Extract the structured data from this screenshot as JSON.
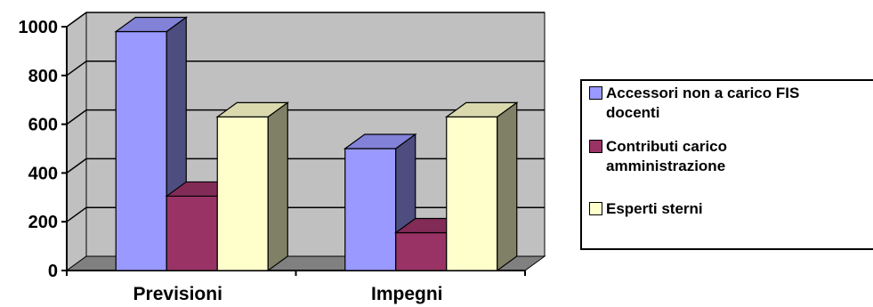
{
  "chart_data": {
    "type": "bar",
    "categories": [
      "Previsioni",
      "Impegni"
    ],
    "series": [
      {
        "name": "Accessori non a carico FIS docenti",
        "values": [
          980,
          500
        ],
        "color": "#9999ff"
      },
      {
        "name": "Contributi  carico amministrazione",
        "values": [
          305,
          155
        ],
        "color": "#993366"
      },
      {
        "name": "Esperti sterni",
        "values": [
          630,
          630
        ],
        "color": "#ffffcc"
      }
    ],
    "yticks": [
      "0",
      "200",
      "400",
      "600",
      "800",
      "1000"
    ],
    "ylim": [
      0,
      1000
    ],
    "grid": true,
    "legend_position": "right",
    "wall_color": "#c0c0c0",
    "floor_color": "#808080"
  },
  "legend": {
    "items": [
      {
        "label": "Accessori non a carico FIS\ndocenti",
        "color": "#9999ff"
      },
      {
        "label": "Contributi  carico\namministrazione",
        "color": "#993366"
      },
      {
        "label": "Esperti sterni",
        "color": "#ffffcc"
      }
    ]
  }
}
